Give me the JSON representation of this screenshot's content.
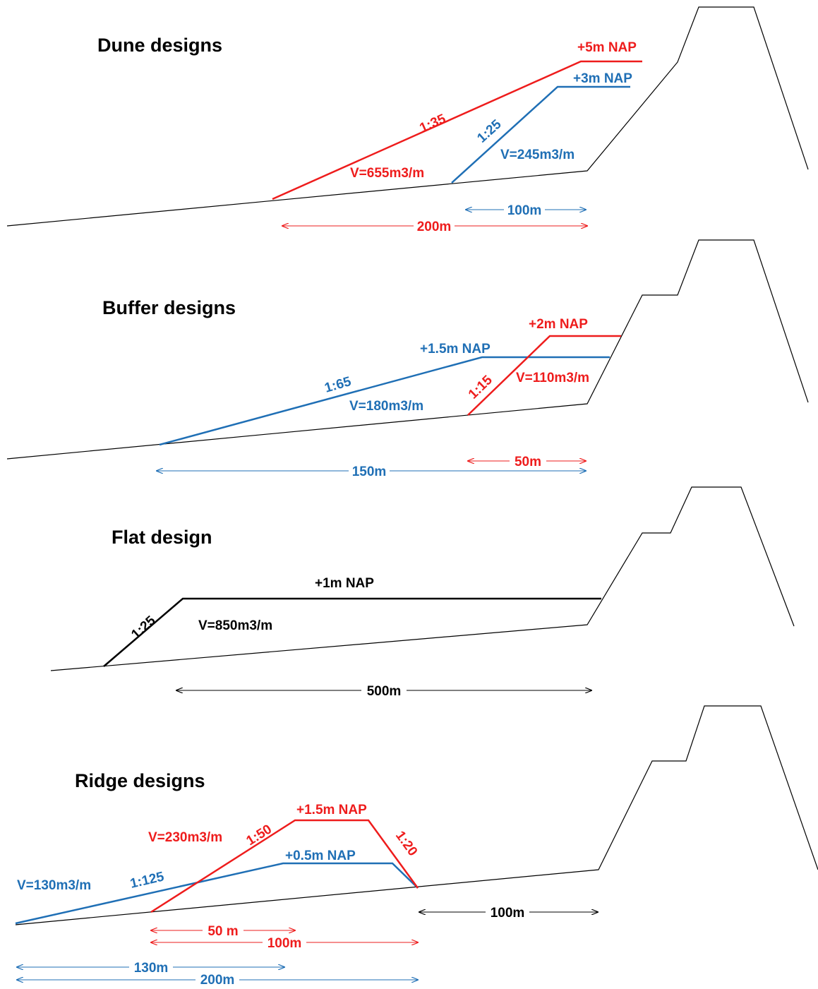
{
  "colors": {
    "red": "#ee1c1c",
    "blue": "#1f6fb5",
    "black": "#000000"
  },
  "panels": {
    "dune": {
      "title": "Dune designs",
      "red_level": "+5m NAP",
      "blue_level": "+3m NAP",
      "red_slope": "1:35",
      "blue_slope": "1:25",
      "red_volume": "V=655m3/m",
      "blue_volume": "V=245m3/m",
      "dim_blue": "100m",
      "dim_red": "200m"
    },
    "buffer": {
      "title": "Buffer designs",
      "red_level": "+2m NAP",
      "blue_level": "+1.5m NAP",
      "blue_slope": "1:65",
      "red_slope": "1:15",
      "red_volume": "V=110m3/m",
      "blue_volume": "V=180m3/m",
      "dim_red": "50m",
      "dim_blue": "150m"
    },
    "flat": {
      "title": "Flat design",
      "level": "+1m NAP",
      "slope": "1:25",
      "volume": "V=850m3/m",
      "dim": "500m"
    },
    "ridge": {
      "title": "Ridge designs",
      "red_level": "+1.5m NAP",
      "blue_level": "+0.5m NAP",
      "red_volume": "V=230m3/m",
      "blue_volume": "V=130m3/m",
      "red_slope_front": "1:50",
      "red_slope_back": "1:20",
      "blue_slope": "1:125",
      "dim_black": "100m",
      "dim_red_short": "50 m",
      "dim_red_long": "100m",
      "dim_blue_short": "130m",
      "dim_blue_long": "200m"
    }
  }
}
